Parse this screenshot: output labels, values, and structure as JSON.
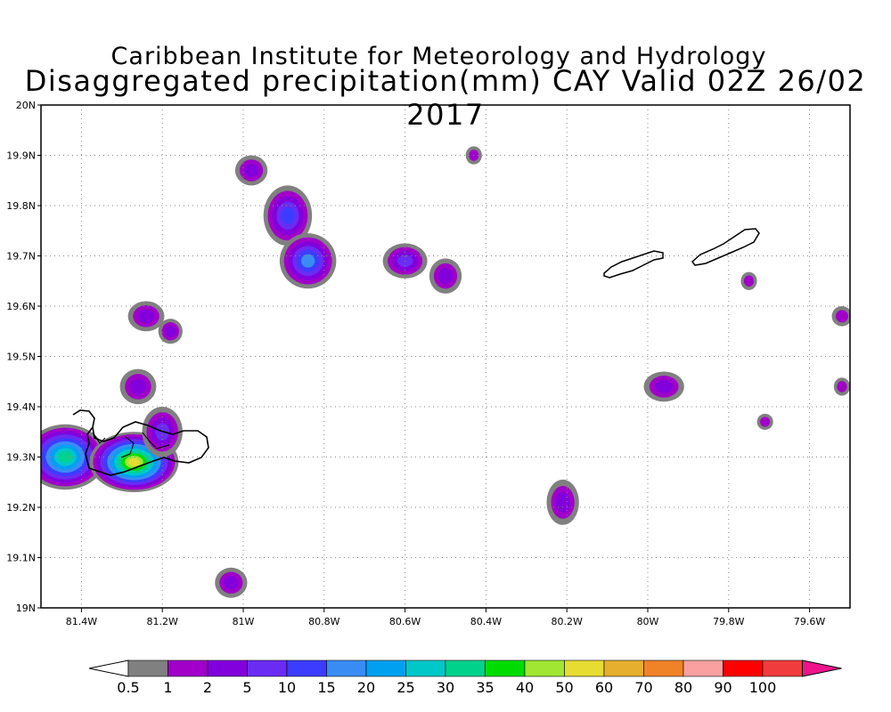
{
  "title": "Caribbean Institute for Meteorology and Hydrology",
  "subtitle": "Disaggregated precipitation(mm) CAY Valid 02Z 26/02 2017",
  "map": {
    "lon_range": [
      -81.5,
      -79.5
    ],
    "lat_range": [
      19.0,
      20.0
    ],
    "grid": true,
    "lon_ticks": [
      {
        "v": -81.4,
        "label": "81.4W"
      },
      {
        "v": -81.2,
        "label": "81.2W"
      },
      {
        "v": -81.0,
        "label": "81W"
      },
      {
        "v": -80.8,
        "label": "80.8W"
      },
      {
        "v": -80.6,
        "label": "80.6W"
      },
      {
        "v": -80.4,
        "label": "80.4W"
      },
      {
        "v": -80.2,
        "label": "80.2W"
      },
      {
        "v": -80.0,
        "label": "80W"
      },
      {
        "v": -79.8,
        "label": "79.8W"
      },
      {
        "v": -79.6,
        "label": "79.6W"
      }
    ],
    "lat_ticks": [
      {
        "v": 19.0,
        "label": "19N"
      },
      {
        "v": 19.1,
        "label": "19.1N"
      },
      {
        "v": 19.2,
        "label": "19.2N"
      },
      {
        "v": 19.3,
        "label": "19.3N"
      },
      {
        "v": 19.4,
        "label": "19.4N"
      },
      {
        "v": 19.5,
        "label": "19.5N"
      },
      {
        "v": 19.6,
        "label": "19.6N"
      },
      {
        "v": 19.7,
        "label": "19.7N"
      },
      {
        "v": 19.8,
        "label": "19.8N"
      },
      {
        "v": 19.9,
        "label": "19.9N"
      },
      {
        "v": 20.0,
        "label": "20N"
      }
    ],
    "precip_cells": [
      {
        "lon": -81.44,
        "lat": 19.3,
        "rlon": 0.1,
        "rlat": 0.065,
        "max": 30
      },
      {
        "lon": -81.27,
        "lat": 19.29,
        "rlon": 0.11,
        "rlat": 0.06,
        "max": 50
      },
      {
        "lon": -81.2,
        "lat": 19.35,
        "rlon": 0.05,
        "rlat": 0.05,
        "max": 5
      },
      {
        "lon": -81.26,
        "lat": 19.44,
        "rlon": 0.045,
        "rlat": 0.035,
        "max": 2
      },
      {
        "lon": -81.24,
        "lat": 19.58,
        "rlon": 0.045,
        "rlat": 0.03,
        "max": 2
      },
      {
        "lon": -81.18,
        "lat": 19.55,
        "rlon": 0.03,
        "rlat": 0.025,
        "max": 2
      },
      {
        "lon": -81.03,
        "lat": 19.05,
        "rlon": 0.04,
        "rlat": 0.03,
        "max": 2
      },
      {
        "lon": -80.98,
        "lat": 19.87,
        "rlon": 0.04,
        "rlat": 0.03,
        "max": 2
      },
      {
        "lon": -80.89,
        "lat": 19.78,
        "rlon": 0.06,
        "rlat": 0.06,
        "max": 10
      },
      {
        "lon": -80.84,
        "lat": 19.69,
        "rlon": 0.07,
        "rlat": 0.055,
        "max": 15
      },
      {
        "lon": -80.6,
        "lat": 19.69,
        "rlon": 0.055,
        "rlat": 0.035,
        "max": 5
      },
      {
        "lon": -80.5,
        "lat": 19.66,
        "rlon": 0.04,
        "rlat": 0.035,
        "max": 2
      },
      {
        "lon": -80.43,
        "lat": 19.9,
        "rlon": 0.02,
        "rlat": 0.018,
        "max": 1
      },
      {
        "lon": -80.21,
        "lat": 19.21,
        "rlon": 0.04,
        "rlat": 0.045,
        "max": 2
      },
      {
        "lon": -79.96,
        "lat": 19.44,
        "rlon": 0.05,
        "rlat": 0.03,
        "max": 2
      },
      {
        "lon": -79.75,
        "lat": 19.65,
        "rlon": 0.02,
        "rlat": 0.018,
        "max": 1
      },
      {
        "lon": -79.71,
        "lat": 19.37,
        "rlon": 0.02,
        "rlat": 0.016,
        "max": 1
      },
      {
        "lon": -79.52,
        "lat": 19.58,
        "rlon": 0.025,
        "rlat": 0.02,
        "max": 1
      },
      {
        "lon": -79.52,
        "lat": 19.44,
        "rlon": 0.02,
        "rlat": 0.018,
        "max": 1
      }
    ]
  },
  "colorbar": {
    "labels": [
      "0.5",
      "1",
      "2",
      "5",
      "10",
      "15",
      "20",
      "25",
      "30",
      "35",
      "40",
      "50",
      "60",
      "70",
      "80",
      "90",
      "100"
    ],
    "colors": [
      "#808080",
      "#a000c8",
      "#8200dc",
      "#6a2cf2",
      "#3c3cff",
      "#3a8cf5",
      "#00a0f0",
      "#00c8c8",
      "#00d28c",
      "#00dc00",
      "#a0e632",
      "#e6dc32",
      "#e6af2d",
      "#f08228",
      "#faa0a0",
      "#ff0000",
      "#f03c3c"
    ],
    "under_color": "#ffffff",
    "over_color": "#f0148c"
  }
}
